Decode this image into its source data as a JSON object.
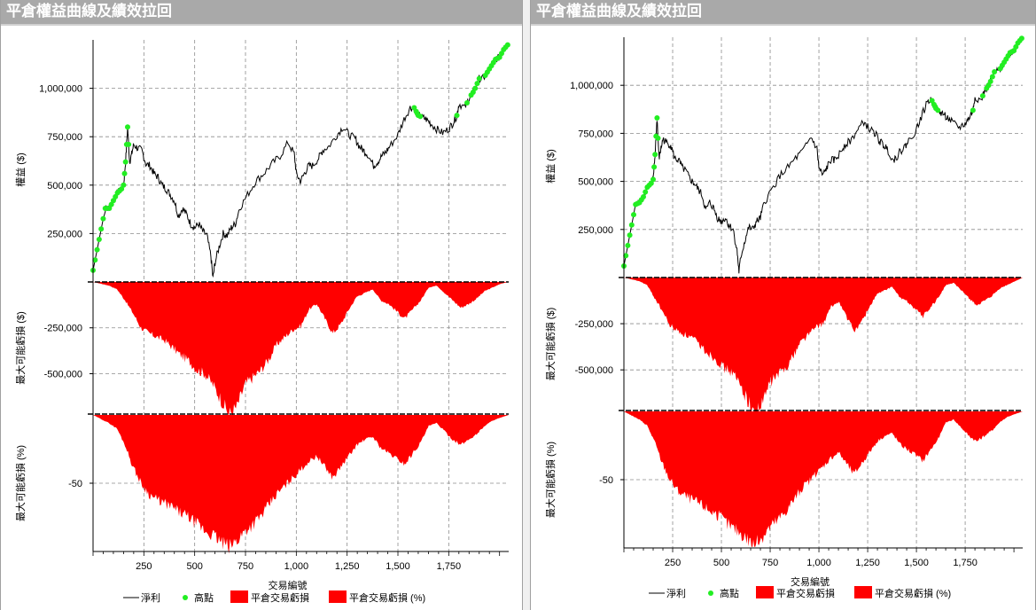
{
  "panels": [
    {
      "title": "平倉權益曲線及績效拉回"
    },
    {
      "title": "平倉權益曲線及績效拉回"
    }
  ],
  "colors": {
    "equity": "#000000",
    "highs": "#22ee22",
    "drawdown": "#ff0000",
    "grid": "#8c8c8c",
    "axis": "#000000"
  },
  "chart_data": [
    {
      "type": "line",
      "x": [
        0,
        60,
        80,
        100,
        120,
        140,
        150,
        160,
        170,
        180,
        190,
        200,
        220,
        240,
        260,
        280,
        300,
        320,
        340,
        360,
        380,
        400,
        420,
        440,
        460,
        480,
        500,
        520,
        540,
        560,
        580,
        590,
        600,
        620,
        640,
        660,
        680,
        700,
        720,
        760,
        800,
        840,
        880,
        920,
        960,
        990,
        1000,
        1020,
        1040,
        1060,
        1080,
        1110,
        1130,
        1160,
        1200,
        1230,
        1260,
        1290,
        1310,
        1330,
        1350,
        1380,
        1400,
        1420,
        1440,
        1460,
        1500,
        1530,
        1560,
        1580,
        1600,
        1620,
        1640,
        1660,
        1690,
        1720,
        1750,
        1770,
        1790,
        1800,
        1830,
        1850,
        1870,
        1880,
        1900,
        1920,
        1950,
        1980,
        2000,
        2020,
        2045
      ],
      "series": [
        {
          "name": "淨利",
          "values": [
            60000,
            380000,
            380000,
            420000,
            460000,
            480000,
            500000,
            620000,
            800000,
            620000,
            660000,
            710000,
            690000,
            680000,
            610000,
            600000,
            560000,
            540000,
            500000,
            480000,
            450000,
            420000,
            340000,
            380000,
            350000,
            300000,
            280000,
            300000,
            260000,
            240000,
            130000,
            20000,
            100000,
            180000,
            250000,
            240000,
            280000,
            300000,
            380000,
            450000,
            520000,
            560000,
            610000,
            650000,
            720000,
            660000,
            560000,
            520000,
            560000,
            600000,
            600000,
            640000,
            680000,
            700000,
            760000,
            800000,
            760000,
            740000,
            700000,
            680000,
            660000,
            600000,
            620000,
            650000,
            670000,
            700000,
            760000,
            840000,
            900000,
            900000,
            860000,
            850000,
            840000,
            820000,
            790000,
            770000,
            790000,
            820000,
            860000,
            920000,
            900000,
            950000,
            980000,
            1000000,
            1050000,
            1050000,
            1100000,
            1150000,
            1160000,
            1200000,
            1230000
          ]
        }
      ],
      "new_highs": [
        0,
        10,
        20,
        30,
        40,
        50,
        60,
        70,
        80,
        90,
        100,
        110,
        120,
        130,
        140,
        150,
        155,
        160,
        165,
        170,
        175,
        1580,
        1590,
        1595,
        1600,
        1610,
        1790,
        1840,
        1860,
        1870,
        1880,
        1890,
        1900,
        1930,
        1940,
        1950,
        1960,
        1970,
        1980,
        1990,
        2000,
        2010,
        2020,
        2030,
        2040
      ],
      "drawdown_values": [
        0,
        -10000,
        -20000,
        -40000,
        -100000,
        -170000,
        -250000,
        -280000,
        -300000,
        -320000,
        -360000,
        -400000,
        -430000,
        -480000,
        -500000,
        -560000,
        -640000,
        -720000,
        -680000,
        -560000,
        -520000,
        -480000,
        -420000,
        -340000,
        -300000,
        -260000,
        -240000,
        -150000,
        -120000,
        -200000,
        -280000,
        -230000,
        -150000,
        -80000,
        -60000,
        -40000,
        -100000,
        -120000,
        -160000,
        -200000,
        -150000,
        -100000,
        -30000,
        -20000,
        -60000,
        -100000,
        -140000,
        -120000,
        -90000,
        -50000,
        -30000,
        -10000,
        0
      ],
      "drawdown_pct": [
        0,
        -3,
        -6,
        -10,
        -22,
        -38,
        -50,
        -58,
        -62,
        -65,
        -68,
        -72,
        -75,
        -80,
        -85,
        -88,
        -93,
        -97,
        -92,
        -85,
        -80,
        -74,
        -66,
        -58,
        -52,
        -46,
        -40,
        -34,
        -30,
        -38,
        -46,
        -38,
        -30,
        -22,
        -18,
        -16,
        -24,
        -28,
        -32,
        -36,
        -28,
        -20,
        -8,
        -6,
        -12,
        -18,
        -22,
        -18,
        -14,
        -8,
        -4,
        -2,
        0
      ],
      "legend": [
        "淨利",
        "高點",
        "平倉交易虧損",
        "平倉交易虧損 (%)"
      ],
      "xlabel": "交易編號",
      "x_ticks": [
        "250",
        "500",
        "750",
        "1,000",
        "1,250",
        "1,500",
        "1,750"
      ],
      "equity_ylabel": "權益 ($)",
      "equity_ticks": [
        "250,000",
        "500,000",
        "750,000",
        "1,000,000"
      ],
      "dd_ylabel": "最大可能虧損 ($)",
      "dd_ticks": [
        "-250,000",
        "-500,000"
      ],
      "ddpct_ylabel": "最大可能虧損 (%)",
      "ddpct_ticks": [
        "-50"
      ]
    },
    {
      "type": "line",
      "x": [
        0,
        60,
        80,
        100,
        120,
        140,
        150,
        160,
        170,
        180,
        190,
        200,
        220,
        240,
        260,
        280,
        300,
        320,
        340,
        360,
        380,
        400,
        420,
        440,
        460,
        480,
        500,
        520,
        540,
        560,
        580,
        590,
        600,
        620,
        640,
        660,
        680,
        700,
        720,
        760,
        800,
        840,
        880,
        920,
        960,
        990,
        1000,
        1020,
        1040,
        1060,
        1080,
        1110,
        1130,
        1160,
        1200,
        1230,
        1260,
        1290,
        1310,
        1330,
        1350,
        1380,
        1400,
        1420,
        1440,
        1460,
        1500,
        1530,
        1560,
        1580,
        1600,
        1620,
        1640,
        1660,
        1690,
        1720,
        1750,
        1770,
        1790,
        1800,
        1830,
        1850,
        1870,
        1880,
        1900,
        1920,
        1950,
        1980,
        2000,
        2020,
        2045
      ],
      "series": [
        {
          "name": "淨利",
          "values": [
            60000,
            380000,
            390000,
            420000,
            470000,
            490000,
            510000,
            640000,
            830000,
            620000,
            670000,
            720000,
            700000,
            690000,
            620000,
            610000,
            570000,
            550000,
            510000,
            490000,
            460000,
            430000,
            350000,
            390000,
            360000,
            310000,
            290000,
            310000,
            270000,
            250000,
            140000,
            30000,
            110000,
            190000,
            260000,
            250000,
            290000,
            310000,
            390000,
            460000,
            530000,
            570000,
            620000,
            660000,
            730000,
            670000,
            570000,
            530000,
            570000,
            610000,
            610000,
            650000,
            690000,
            710000,
            770000,
            810000,
            770000,
            750000,
            710000,
            690000,
            670000,
            610000,
            630000,
            660000,
            680000,
            710000,
            770000,
            850000,
            920000,
            920000,
            880000,
            860000,
            850000,
            830000,
            800000,
            780000,
            800000,
            830000,
            870000,
            940000,
            920000,
            970000,
            1000000,
            1020000,
            1070000,
            1070000,
            1120000,
            1170000,
            1180000,
            1220000,
            1250000
          ]
        }
      ],
      "new_highs": [
        0,
        10,
        20,
        30,
        40,
        50,
        60,
        70,
        80,
        90,
        100,
        110,
        120,
        130,
        140,
        150,
        155,
        160,
        165,
        170,
        175,
        1580,
        1590,
        1595,
        1600,
        1610,
        1790,
        1840,
        1860,
        1870,
        1880,
        1890,
        1900,
        1930,
        1940,
        1950,
        1960,
        1970,
        1980,
        1990,
        2000,
        2010,
        2020,
        2030,
        2040
      ],
      "drawdown_values": [
        0,
        -10000,
        -20000,
        -40000,
        -110000,
        -180000,
        -260000,
        -290000,
        -310000,
        -330000,
        -370000,
        -410000,
        -440000,
        -490000,
        -510000,
        -570000,
        -650000,
        -740000,
        -690000,
        -570000,
        -530000,
        -490000,
        -430000,
        -350000,
        -310000,
        -270000,
        -250000,
        -160000,
        -130000,
        -210000,
        -290000,
        -240000,
        -160000,
        -90000,
        -70000,
        -50000,
        -110000,
        -130000,
        -170000,
        -210000,
        -160000,
        -110000,
        -40000,
        -30000,
        -70000,
        -110000,
        -150000,
        -130000,
        -100000,
        -60000,
        -40000,
        -20000,
        0
      ],
      "drawdown_pct": [
        0,
        -3,
        -6,
        -10,
        -22,
        -38,
        -50,
        -58,
        -62,
        -65,
        -68,
        -72,
        -75,
        -80,
        -85,
        -88,
        -93,
        -98,
        -92,
        -85,
        -80,
        -74,
        -66,
        -58,
        -52,
        -46,
        -40,
        -34,
        -30,
        -38,
        -46,
        -38,
        -30,
        -22,
        -18,
        -16,
        -24,
        -28,
        -32,
        -36,
        -28,
        -20,
        -8,
        -6,
        -12,
        -18,
        -22,
        -18,
        -14,
        -8,
        -4,
        -2,
        0
      ],
      "legend": [
        "淨利",
        "高點",
        "平倉交易虧損",
        "平倉交易虧損 (%)"
      ],
      "xlabel": "交易編號",
      "x_ticks": [
        "250",
        "500",
        "750",
        "1,000",
        "1,250",
        "1,500",
        "1,750"
      ],
      "equity_ylabel": "權益 ($)",
      "equity_ticks": [
        "250,000",
        "500,000",
        "750,000",
        "1,000,000"
      ],
      "dd_ylabel": "最大可能虧損 ($)",
      "dd_ticks": [
        "-250,000",
        "-500,000"
      ],
      "ddpct_ylabel": "最大可能虧損 (%)",
      "ddpct_ticks": [
        "-50"
      ]
    }
  ]
}
